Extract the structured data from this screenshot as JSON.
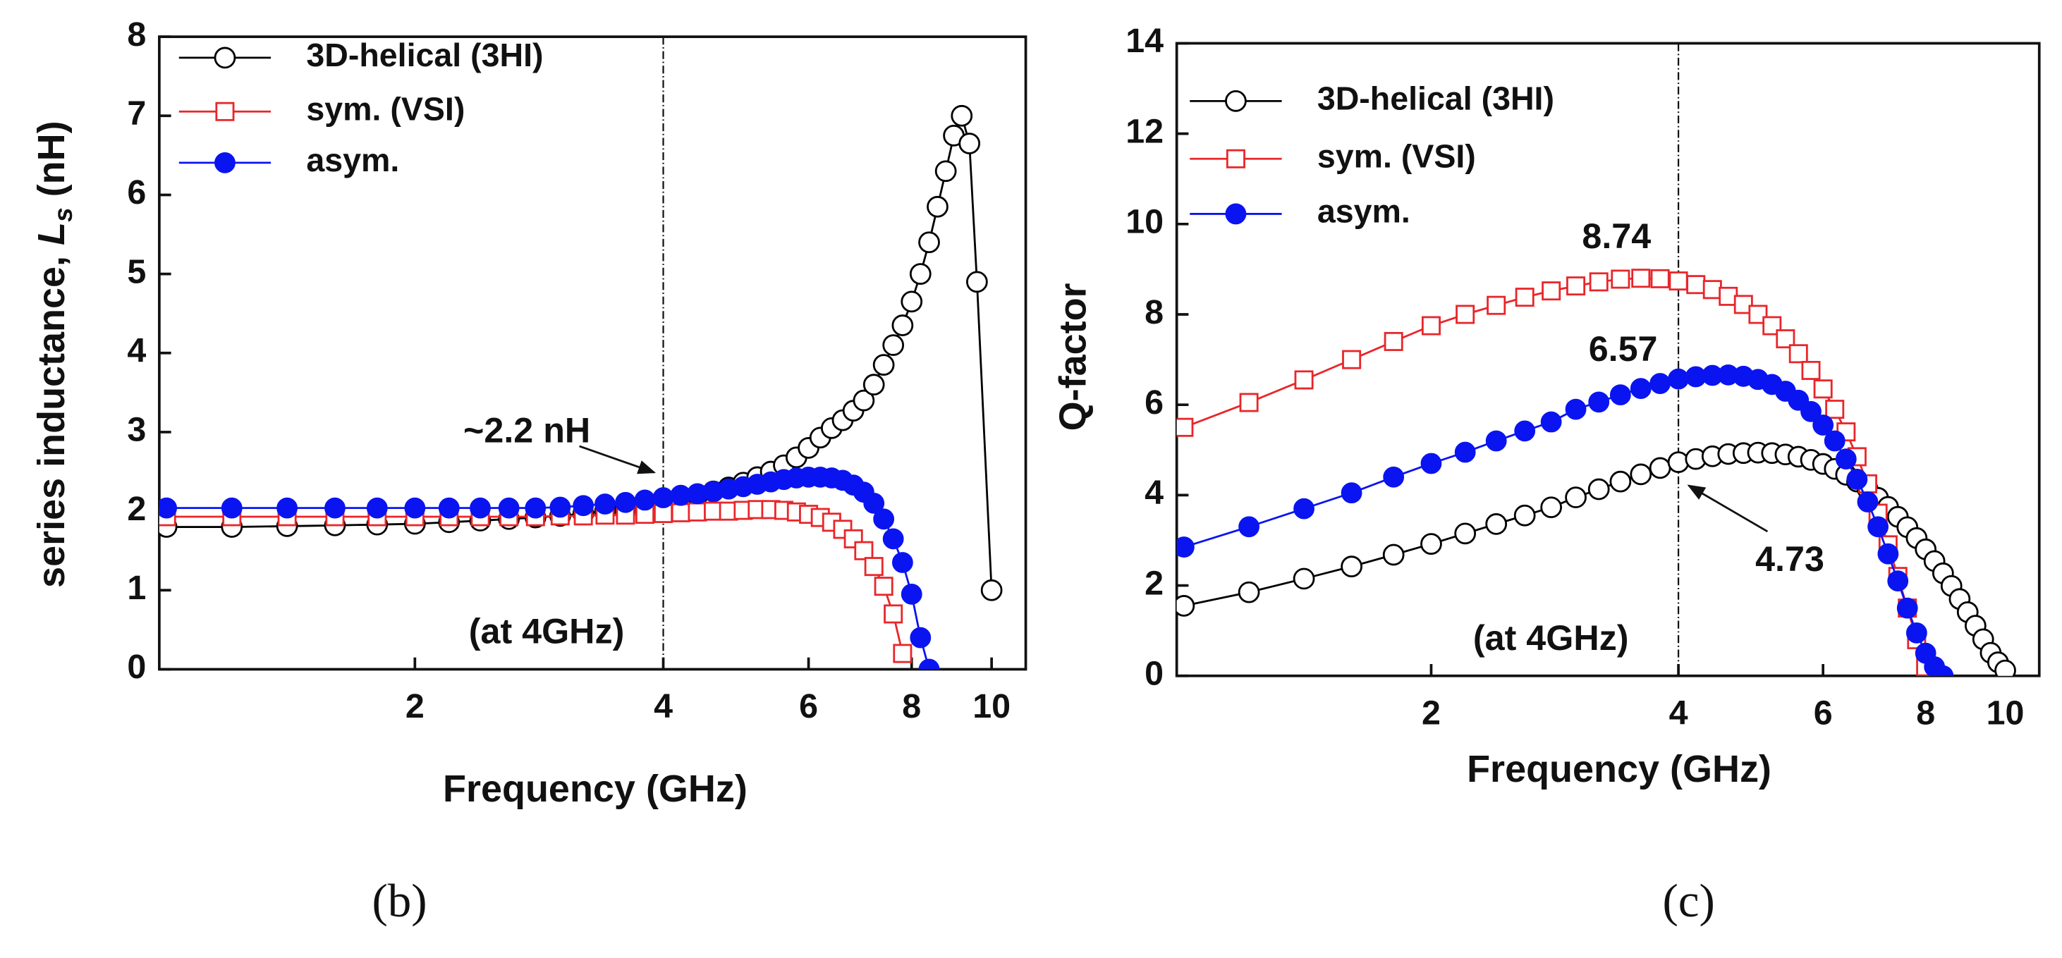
{
  "chart_data": [
    {
      "type": "line",
      "xscale": "log",
      "xlim": [
        0.98,
        11
      ],
      "xticks": [
        2,
        4,
        6,
        8,
        10
      ],
      "ylim": [
        0,
        8
      ],
      "yticks": [
        0,
        1,
        2,
        3,
        4,
        5,
        6,
        7,
        8
      ],
      "xlabel": "Frequency (GHz)",
      "ylabel": {
        "text": "series inductance, ",
        "var": "L",
        "sub": "s",
        "unit": " (nH)"
      },
      "vline": 4,
      "annotations": [
        "~2.2 nH",
        "(at 4GHz)"
      ],
      "panel": "(b)",
      "series": [
        {
          "name": "3D-helical (3HI)",
          "color": "#000000",
          "marker": "open-circle",
          "x": [
            1.0,
            1.2,
            1.4,
            1.6,
            1.8,
            2.0,
            2.2,
            2.4,
            2.6,
            2.8,
            3.0,
            3.2,
            3.4,
            3.6,
            3.8,
            4.0,
            4.2,
            4.4,
            4.6,
            4.8,
            5.0,
            5.2,
            5.4,
            5.6,
            5.8,
            6.0,
            6.2,
            6.4,
            6.6,
            6.8,
            7.0,
            7.2,
            7.4,
            7.6,
            7.8,
            8.0,
            8.2,
            8.4,
            8.6,
            8.8,
            9.0,
            9.2,
            9.4,
            9.6,
            10.0
          ],
          "values": [
            1.8,
            1.8,
            1.81,
            1.82,
            1.83,
            1.84,
            1.86,
            1.88,
            1.9,
            1.92,
            1.94,
            1.97,
            2.0,
            2.03,
            2.07,
            2.11,
            2.15,
            2.2,
            2.25,
            2.3,
            2.36,
            2.43,
            2.5,
            2.58,
            2.68,
            2.8,
            2.93,
            3.05,
            3.15,
            3.27,
            3.4,
            3.6,
            3.85,
            4.1,
            4.35,
            4.65,
            5.0,
            5.4,
            5.85,
            6.3,
            6.75,
            7.0,
            6.65,
            4.9,
            1.0
          ]
        },
        {
          "name": "sym. (VSI)",
          "color": "#e8262a",
          "marker": "open-square",
          "x": [
            1.0,
            1.2,
            1.4,
            1.6,
            1.8,
            2.0,
            2.2,
            2.4,
            2.6,
            2.8,
            3.0,
            3.2,
            3.4,
            3.6,
            3.8,
            4.0,
            4.2,
            4.4,
            4.6,
            4.8,
            5.0,
            5.2,
            5.4,
            5.6,
            5.8,
            6.0,
            6.2,
            6.4,
            6.6,
            6.8,
            7.0,
            7.2,
            7.4,
            7.6,
            7.8
          ],
          "values": [
            1.93,
            1.93,
            1.93,
            1.93,
            1.93,
            1.93,
            1.93,
            1.93,
            1.93,
            1.93,
            1.94,
            1.94,
            1.95,
            1.95,
            1.96,
            1.97,
            1.98,
            1.99,
            2.0,
            2.0,
            2.01,
            2.02,
            2.02,
            2.01,
            1.99,
            1.96,
            1.92,
            1.86,
            1.77,
            1.65,
            1.5,
            1.3,
            1.05,
            0.7,
            0.2
          ]
        },
        {
          "name": "asym.",
          "color": "#0a14f0",
          "marker": "filled-circle",
          "x": [
            1.0,
            1.2,
            1.4,
            1.6,
            1.8,
            2.0,
            2.2,
            2.4,
            2.6,
            2.8,
            3.0,
            3.2,
            3.4,
            3.6,
            3.8,
            4.0,
            4.2,
            4.4,
            4.6,
            4.8,
            5.0,
            5.2,
            5.4,
            5.6,
            5.8,
            6.0,
            6.2,
            6.4,
            6.6,
            6.8,
            7.0,
            7.2,
            7.4,
            7.6,
            7.8,
            8.0,
            8.2,
            8.4
          ],
          "values": [
            2.04,
            2.04,
            2.04,
            2.04,
            2.04,
            2.04,
            2.04,
            2.04,
            2.04,
            2.04,
            2.05,
            2.07,
            2.09,
            2.11,
            2.14,
            2.17,
            2.2,
            2.22,
            2.25,
            2.28,
            2.31,
            2.34,
            2.37,
            2.4,
            2.42,
            2.43,
            2.43,
            2.42,
            2.39,
            2.33,
            2.24,
            2.1,
            1.9,
            1.65,
            1.35,
            0.95,
            0.4,
            0.0
          ]
        }
      ]
    },
    {
      "type": "line",
      "xscale": "log",
      "xlim": [
        0.98,
        11
      ],
      "xticks": [
        2,
        4,
        6,
        8,
        10
      ],
      "ylim": [
        0,
        14
      ],
      "yticks": [
        0,
        2,
        4,
        6,
        8,
        10,
        12,
        14
      ],
      "xlabel": "Frequency (GHz)",
      "ylabel": {
        "text": "Q-factor"
      },
      "vline": 4,
      "annotations": [
        "8.74",
        "6.57",
        "4.73",
        "(at 4GHz)"
      ],
      "panel": "(c)",
      "series": [
        {
          "name": "3D-helical (3HI)",
          "color": "#000000",
          "marker": "open-circle",
          "x": [
            1.0,
            1.2,
            1.4,
            1.6,
            1.8,
            2.0,
            2.2,
            2.4,
            2.6,
            2.8,
            3.0,
            3.2,
            3.4,
            3.6,
            3.8,
            4.0,
            4.2,
            4.4,
            4.6,
            4.8,
            5.0,
            5.2,
            5.4,
            5.6,
            5.8,
            6.0,
            6.2,
            6.4,
            6.6,
            6.8,
            7.0,
            7.2,
            7.4,
            7.6,
            7.8,
            8.0,
            8.2,
            8.4,
            8.6,
            8.8,
            9.0,
            9.2,
            9.4,
            9.6,
            9.8,
            10.0
          ],
          "values": [
            1.55,
            1.85,
            2.15,
            2.42,
            2.68,
            2.92,
            3.15,
            3.36,
            3.55,
            3.73,
            3.95,
            4.13,
            4.3,
            4.46,
            4.6,
            4.73,
            4.8,
            4.86,
            4.91,
            4.93,
            4.94,
            4.93,
            4.9,
            4.85,
            4.78,
            4.69,
            4.58,
            4.45,
            4.3,
            4.13,
            3.94,
            3.74,
            3.52,
            3.29,
            3.05,
            2.8,
            2.54,
            2.27,
            1.99,
            1.7,
            1.41,
            1.11,
            0.81,
            0.51,
            0.3,
            0.12
          ]
        },
        {
          "name": "sym. (VSI)",
          "color": "#e8262a",
          "marker": "open-square",
          "x": [
            1.0,
            1.2,
            1.4,
            1.6,
            1.8,
            2.0,
            2.2,
            2.4,
            2.6,
            2.8,
            3.0,
            3.2,
            3.4,
            3.6,
            3.8,
            4.0,
            4.2,
            4.4,
            4.6,
            4.8,
            5.0,
            5.2,
            5.4,
            5.6,
            5.8,
            6.0,
            6.2,
            6.4,
            6.6,
            6.8,
            7.0,
            7.2,
            7.4,
            7.6,
            7.8,
            8.0
          ],
          "values": [
            5.5,
            6.05,
            6.55,
            7.0,
            7.4,
            7.75,
            8.0,
            8.2,
            8.38,
            8.52,
            8.63,
            8.72,
            8.78,
            8.8,
            8.79,
            8.74,
            8.66,
            8.55,
            8.4,
            8.22,
            8.0,
            7.75,
            7.46,
            7.13,
            6.76,
            6.35,
            5.9,
            5.4,
            4.85,
            4.25,
            3.6,
            2.9,
            2.2,
            1.5,
            0.8,
            0.2
          ]
        },
        {
          "name": "asym.",
          "color": "#0a14f0",
          "marker": "filled-circle",
          "x": [
            1.0,
            1.2,
            1.4,
            1.6,
            1.8,
            2.0,
            2.2,
            2.4,
            2.6,
            2.8,
            3.0,
            3.2,
            3.4,
            3.6,
            3.8,
            4.0,
            4.2,
            4.4,
            4.6,
            4.8,
            5.0,
            5.2,
            5.4,
            5.6,
            5.8,
            6.0,
            6.2,
            6.4,
            6.6,
            6.8,
            7.0,
            7.2,
            7.4,
            7.6,
            7.8,
            8.0,
            8.2,
            8.4
          ],
          "values": [
            2.85,
            3.3,
            3.7,
            4.05,
            4.4,
            4.7,
            4.95,
            5.2,
            5.42,
            5.62,
            5.9,
            6.06,
            6.22,
            6.36,
            6.47,
            6.57,
            6.62,
            6.65,
            6.66,
            6.63,
            6.56,
            6.45,
            6.3,
            6.1,
            5.85,
            5.55,
            5.2,
            4.8,
            4.35,
            3.85,
            3.3,
            2.7,
            2.1,
            1.5,
            0.95,
            0.5,
            0.2,
            0.0
          ]
        }
      ]
    }
  ]
}
